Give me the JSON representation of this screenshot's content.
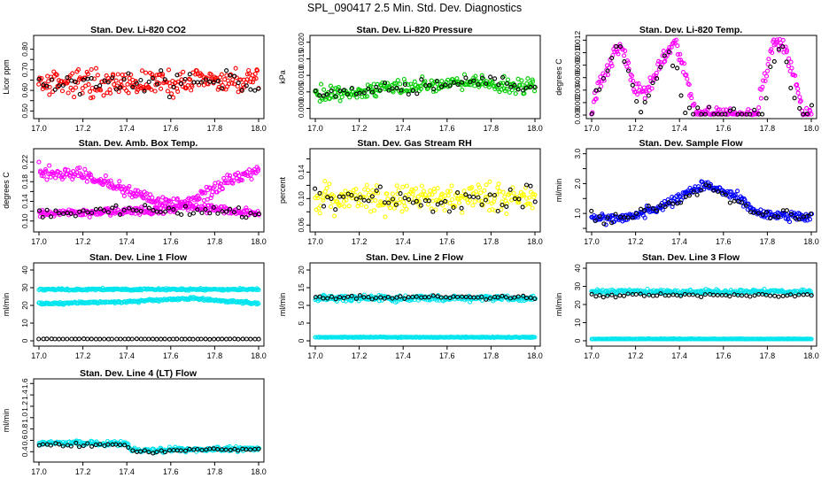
{
  "page_title": "SPL_090417  2.5 Min. Std. Dev. Diagnostics",
  "chart_data": [
    {
      "id": "co2",
      "type": "scatter",
      "title": "Stan. Dev. Li-820 CO2",
      "ylabel": "Licor ppm",
      "xlim": [
        17.0,
        18.0
      ],
      "ylim": [
        0.48,
        0.85
      ],
      "xticks": [
        17.0,
        17.2,
        17.4,
        17.6,
        17.8,
        18.0
      ],
      "xtick_labels": [
        "17.0",
        "17.2",
        "17.4",
        "17.6",
        "17.8",
        "18.0"
      ],
      "yticks": [
        0.5,
        0.55,
        0.6,
        0.65,
        0.7,
        0.75,
        0.8
      ],
      "ytick_labels": [
        "0.50",
        "",
        "0.60",
        "",
        "0.70",
        "",
        "0.80"
      ],
      "series": [
        {
          "color": "#ff0000",
          "base": 0.64,
          "noise": 0.06,
          "trend": [
            [
              17,
              0
            ],
            [
              18,
              0
            ]
          ]
        },
        {
          "color": "#000000",
          "base": 0.64,
          "noise": 0.05,
          "trend": [
            [
              17,
              0
            ],
            [
              18,
              0
            ]
          ]
        }
      ]
    },
    {
      "id": "pressure",
      "type": "scatter",
      "title": "Stan. Dev. Li-820 Pressure",
      "ylabel": "kPa",
      "xlim": [
        17.0,
        18.0
      ],
      "ylim": [
        -0.002,
        0.021
      ],
      "xticks": [
        17.0,
        17.2,
        17.4,
        17.6,
        17.8,
        18.0
      ],
      "xtick_labels": [
        "17.0",
        "17.2",
        "17.4",
        "17.6",
        "17.8",
        "18.0"
      ],
      "yticks": [
        0,
        0.005,
        0.01,
        0.015,
        0.02
      ],
      "ytick_labels": [
        "0.000",
        "0.005",
        "0.010",
        "0.015",
        "0.020"
      ],
      "series": [
        {
          "color": "#00cc00",
          "base": 0.006,
          "noise": 0.0025,
          "trend": [
            [
              17.0,
              -0.002
            ],
            [
              17.5,
              0.001
            ],
            [
              17.7,
              0.002
            ],
            [
              18.0,
              0.0
            ]
          ]
        },
        {
          "color": "#000000",
          "base": 0.006,
          "noise": 0.002,
          "trend": [
            [
              17.0,
              -0.002
            ],
            [
              17.5,
              0.001
            ],
            [
              17.7,
              0.002
            ],
            [
              18.0,
              0.0
            ]
          ]
        }
      ]
    },
    {
      "id": "temp",
      "type": "scatter",
      "title": "Stan. Dev. Li-820 Temp.",
      "ylabel": "degrees C",
      "xlim": [
        17.0,
        18.0
      ],
      "ylim": [
        0.0,
        0.0122
      ],
      "xticks": [
        17.0,
        17.2,
        17.4,
        17.6,
        17.8,
        18.0
      ],
      "xtick_labels": [
        "17.0",
        "17.2",
        "17.4",
        "17.6",
        "17.8",
        "18.0"
      ],
      "yticks": [
        0,
        0.002,
        0.004,
        0.006,
        0.008,
        0.01,
        0.012
      ],
      "ytick_labels": [
        "0.000",
        "0.002",
        "0.004",
        "0.006",
        "0.008",
        "0.010",
        "0.012"
      ],
      "series": [
        {
          "color": "#ff00ff",
          "profile": [
            [
              17.0,
              0.0
            ],
            [
              17.02,
              0.004
            ],
            [
              17.13,
              0.0115
            ],
            [
              17.2,
              0.004
            ],
            [
              17.25,
              0.004
            ],
            [
              17.38,
              0.012
            ],
            [
              17.45,
              0.004
            ],
            [
              17.47,
              0.0
            ],
            [
              17.75,
              0.0
            ],
            [
              17.78,
              0.005
            ],
            [
              17.83,
              0.012
            ],
            [
              17.88,
              0.011
            ],
            [
              17.94,
              0.004
            ],
            [
              17.96,
              0.0
            ],
            [
              18.0,
              0.0
            ]
          ],
          "noise": 0.0012
        },
        {
          "color": "#000000",
          "profile": [
            [
              17.0,
              0.0
            ],
            [
              17.06,
              0.007
            ],
            [
              17.14,
              0.011
            ],
            [
              17.18,
              0.005
            ],
            [
              17.22,
              0.0
            ],
            [
              17.35,
              0.011
            ],
            [
              17.4,
              0.005
            ],
            [
              17.42,
              0.0
            ],
            [
              17.78,
              0.0
            ],
            [
              17.81,
              0.008
            ],
            [
              17.87,
              0.011
            ],
            [
              17.92,
              0.003
            ],
            [
              17.95,
              0.0
            ],
            [
              18.0,
              0.0
            ]
          ],
          "noise": 0.0015
        }
      ]
    },
    {
      "id": "ambbox",
      "type": "scatter",
      "title": "Stan. Dev. Amb. Box Temp.",
      "ylabel": "degrees C",
      "xlim": [
        17.0,
        18.0
      ],
      "ylim": [
        0.085,
        0.24
      ],
      "xticks": [
        17.0,
        17.2,
        17.4,
        17.6,
        17.8,
        18.0
      ],
      "xtick_labels": [
        "17.0",
        "17.2",
        "17.4",
        "17.6",
        "17.8",
        "18.0"
      ],
      "yticks": [
        0.1,
        0.12,
        0.14,
        0.16,
        0.18,
        0.2,
        0.22
      ],
      "ytick_labels": [
        "0.10",
        "",
        "0.14",
        "",
        "0.18",
        "",
        "0.22"
      ],
      "series": [
        {
          "color": "#ff00ff",
          "profile": [
            [
              17.0,
              0.2
            ],
            [
              17.2,
              0.195
            ],
            [
              17.4,
              0.16
            ],
            [
              17.55,
              0.135
            ],
            [
              17.7,
              0.14
            ],
            [
              17.85,
              0.18
            ],
            [
              18.0,
              0.205
            ]
          ],
          "noise": 0.012
        },
        {
          "color": "#ff00ff",
          "profile": [
            [
              17.0,
              0.115
            ],
            [
              17.5,
              0.12
            ],
            [
              17.7,
              0.13
            ],
            [
              18.0,
              0.115
            ]
          ],
          "noise": 0.008
        },
        {
          "color": "#000000",
          "profile": [
            [
              17.0,
              0.115
            ],
            [
              17.5,
              0.125
            ],
            [
              18.0,
              0.115
            ]
          ],
          "noise": 0.01
        }
      ]
    },
    {
      "id": "rh",
      "type": "scatter",
      "title": "Stan. Dev. Gas Stream RH",
      "ylabel": "percent",
      "xlim": [
        17.0,
        18.0
      ],
      "ylim": [
        0.055,
        0.17
      ],
      "xticks": [
        17.0,
        17.2,
        17.4,
        17.6,
        17.8,
        18.0
      ],
      "xtick_labels": [
        "17.0",
        "17.2",
        "17.4",
        "17.6",
        "17.8",
        "18.0"
      ],
      "yticks": [
        0.06,
        0.08,
        0.1,
        0.12,
        0.14,
        0.16
      ],
      "ytick_labels": [
        "0.06",
        "",
        "0.10",
        "",
        "0.14",
        ""
      ],
      "series": [
        {
          "color": "#ffff00",
          "base": 0.1,
          "noise": 0.02,
          "trend": [
            [
              17,
              0
            ],
            [
              18,
              0
            ]
          ]
        },
        {
          "color": "#000000",
          "base": 0.1,
          "noise": 0.018,
          "trend": [
            [
              17,
              0
            ],
            [
              18,
              0
            ]
          ]
        }
      ]
    },
    {
      "id": "sample",
      "type": "scatter",
      "title": "Stan. Dev. Sample Flow",
      "ylabel": "ml/min",
      "xlim": [
        17.0,
        18.0
      ],
      "ylim": [
        0.5,
        3.05
      ],
      "xticks": [
        17.0,
        17.2,
        17.4,
        17.6,
        17.8,
        18.0
      ],
      "xtick_labels": [
        "17.0",
        "17.2",
        "17.4",
        "17.6",
        "17.8",
        "18.0"
      ],
      "yticks": [
        0.5,
        1.0,
        1.5,
        2.0,
        2.5,
        3.0
      ],
      "ytick_labels": [
        "",
        "1.0",
        "",
        "2.0",
        "",
        "3.0"
      ],
      "series": [
        {
          "color": "#0000ff",
          "profile": [
            [
              17.0,
              0.8
            ],
            [
              17.2,
              0.9
            ],
            [
              17.4,
              1.5
            ],
            [
              17.52,
              2.0
            ],
            [
              17.65,
              1.6
            ],
            [
              17.75,
              1.0
            ],
            [
              18.0,
              0.9
            ]
          ],
          "noise": 0.17
        },
        {
          "color": "#000000",
          "profile": [
            [
              17.0,
              0.8
            ],
            [
              17.2,
              0.9
            ],
            [
              17.4,
              1.4
            ],
            [
              17.52,
              1.9
            ],
            [
              17.65,
              1.5
            ],
            [
              17.75,
              1.0
            ],
            [
              18.0,
              0.9
            ]
          ],
          "noise": 0.15
        }
      ]
    },
    {
      "id": "line1",
      "type": "scatter",
      "title": "Stan. Dev. Line 1 Flow",
      "ylabel": "ml/min",
      "xlim": [
        17.0,
        18.0
      ],
      "ylim": [
        -1,
        42
      ],
      "xticks": [
        17.0,
        17.2,
        17.4,
        17.6,
        17.8,
        18.0
      ],
      "xtick_labels": [
        "17.0",
        "17.2",
        "17.4",
        "17.6",
        "17.8",
        "18.0"
      ],
      "yticks": [
        0,
        10,
        20,
        30,
        40
      ],
      "ytick_labels": [
        "0",
        "10",
        "20",
        "30",
        "40"
      ],
      "series": [
        {
          "color": "#00e5ee",
          "base": 29,
          "noise": 0.6
        },
        {
          "color": "#00e5ee",
          "profile": [
            [
              17.0,
              21
            ],
            [
              17.4,
              22
            ],
            [
              17.7,
              24
            ],
            [
              18.0,
              21
            ]
          ],
          "noise": 0.7
        },
        {
          "color": "#000000",
          "base": 1,
          "noise": 0.1
        }
      ]
    },
    {
      "id": "line2",
      "type": "scatter",
      "title": "Stan. Dev. Line 2 Flow",
      "ylabel": "ml/min",
      "xlim": [
        17.0,
        18.0
      ],
      "ylim": [
        -0.5,
        21
      ],
      "xticks": [
        17.0,
        17.2,
        17.4,
        17.6,
        17.8,
        18.0
      ],
      "xtick_labels": [
        "17.0",
        "17.2",
        "17.4",
        "17.6",
        "17.8",
        "18.0"
      ],
      "yticks": [
        0,
        5,
        10,
        15,
        20
      ],
      "ytick_labels": [
        "0",
        "5",
        "10",
        "15",
        "20"
      ],
      "series": [
        {
          "color": "#00e5ee",
          "base": 12,
          "noise": 0.8
        },
        {
          "color": "#00e5ee",
          "base": 1,
          "noise": 0.12
        },
        {
          "color": "#000000",
          "base": 12.3,
          "noise": 0.5
        }
      ]
    },
    {
      "id": "line3",
      "type": "scatter",
      "title": "Stan. Dev. Line 3 Flow",
      "ylabel": "ml/min",
      "xlim": [
        17.0,
        18.0
      ],
      "ylim": [
        -1,
        41
      ],
      "xticks": [
        17.0,
        17.2,
        17.4,
        17.6,
        17.8,
        18.0
      ],
      "xtick_labels": [
        "17.0",
        "17.2",
        "17.4",
        "17.6",
        "17.8",
        "18.0"
      ],
      "yticks": [
        0,
        10,
        20,
        30,
        40
      ],
      "ytick_labels": [
        "0",
        "10",
        "20",
        "30",
        "40"
      ],
      "series": [
        {
          "color": "#00e5ee",
          "base": 27,
          "noise": 1.2
        },
        {
          "color": "#00e5ee",
          "base": 1,
          "noise": 0.12
        },
        {
          "color": "#000000",
          "base": 25,
          "noise": 0.8
        }
      ]
    },
    {
      "id": "line4",
      "type": "scatter",
      "title": "Stan. Dev. Line 4 (LT) Flow",
      "ylabel": "ml/min",
      "xlim": [
        17.0,
        18.0
      ],
      "ylim": [
        0.28,
        1.62
      ],
      "xticks": [
        17.0,
        17.2,
        17.4,
        17.6,
        17.8,
        18.0
      ],
      "xtick_labels": [
        "17.0",
        "17.2",
        "17.4",
        "17.6",
        "17.8",
        "18.0"
      ],
      "yticks": [
        0.4,
        0.6,
        0.8,
        1.0,
        1.2,
        1.4,
        1.6
      ],
      "ytick_labels": [
        "0.4",
        "0.6",
        "0.8",
        "1.0",
        "1.2",
        "1.4",
        "1.6"
      ],
      "series": [
        {
          "color": "#00e5ee",
          "profile": [
            [
              17.0,
              0.55
            ],
            [
              17.4,
              0.55
            ],
            [
              17.42,
              0.42
            ],
            [
              18.0,
              0.45
            ]
          ],
          "noise": 0.04
        },
        {
          "color": "#000000",
          "profile": [
            [
              17.0,
              0.52
            ],
            [
              17.4,
              0.52
            ],
            [
              17.42,
              0.4
            ],
            [
              18.0,
              0.45
            ]
          ],
          "noise": 0.03
        }
      ]
    }
  ]
}
